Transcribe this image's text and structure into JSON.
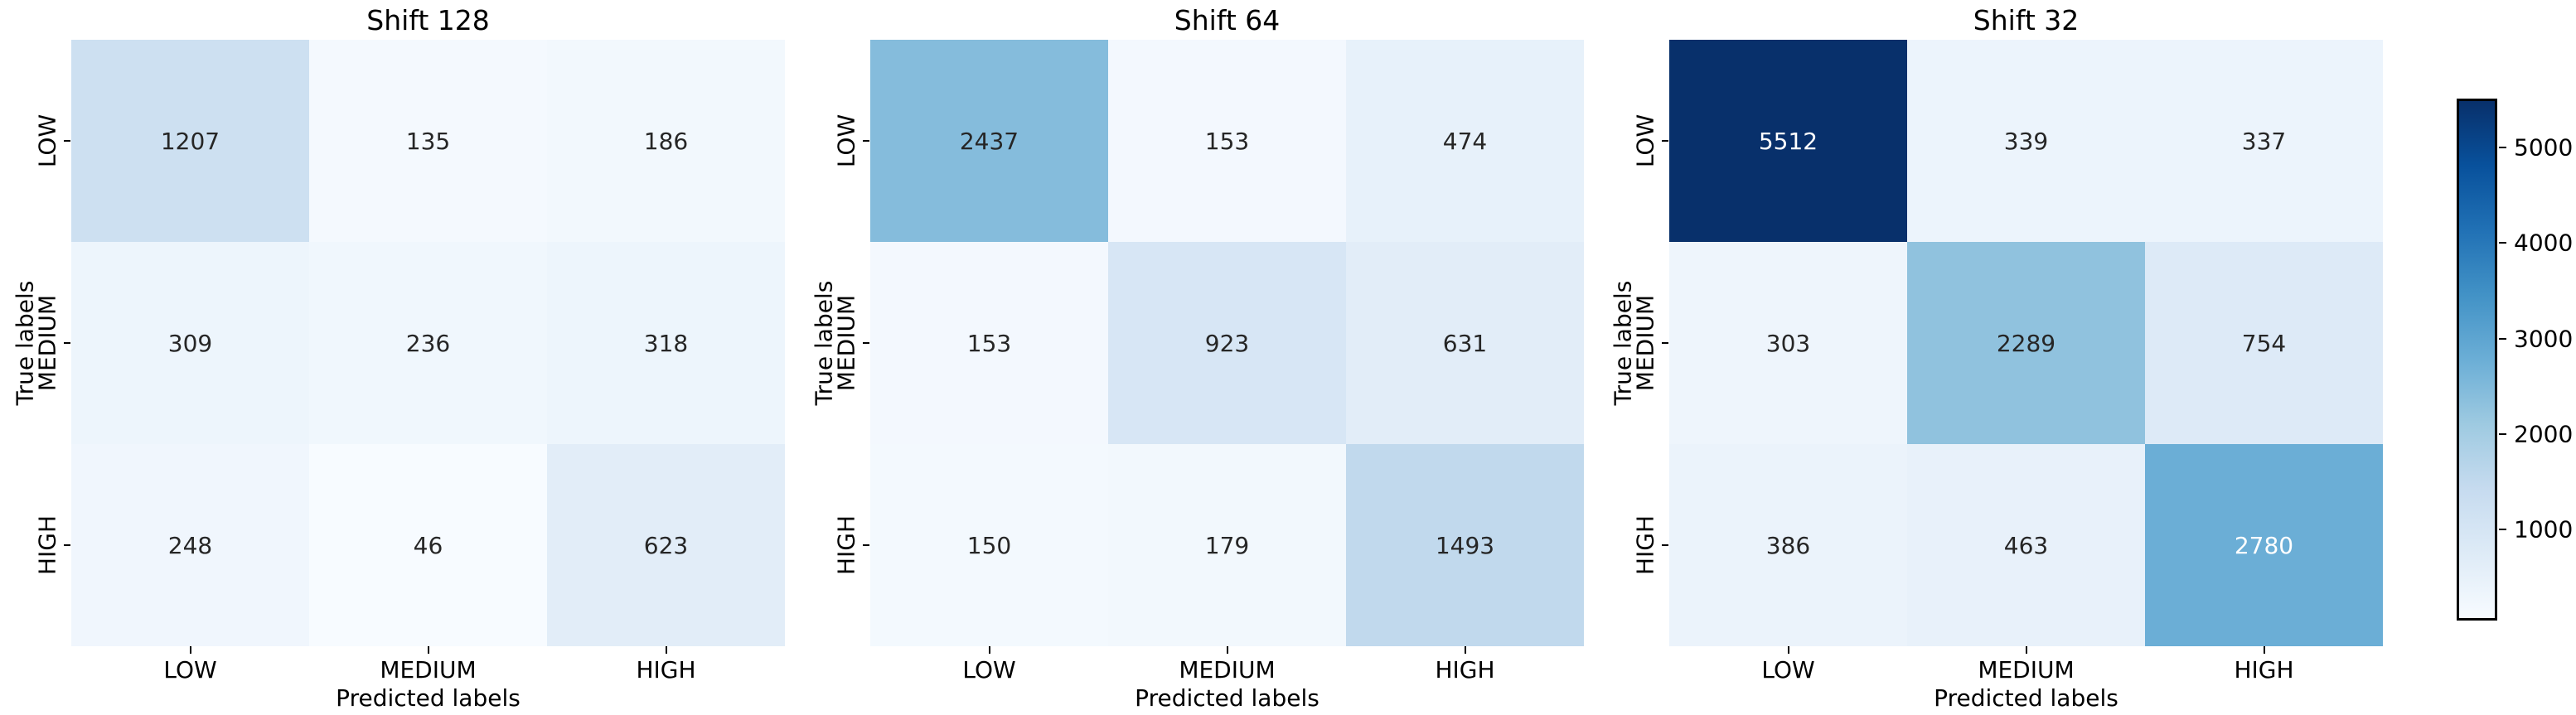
{
  "figure": {
    "background": "#ffffff"
  },
  "chart_data": [
    {
      "type": "heatmap",
      "title": "Shift 128",
      "xlabel": "Predicted labels",
      "ylabel": "True labels",
      "x_categories": [
        "LOW",
        "MEDIUM",
        "HIGH"
      ],
      "y_categories": [
        "LOW",
        "MEDIUM",
        "HIGH"
      ],
      "rows": [
        [
          1207,
          135,
          186
        ],
        [
          309,
          236,
          318
        ],
        [
          248,
          46,
          623
        ]
      ]
    },
    {
      "type": "heatmap",
      "title": "Shift 64",
      "xlabel": "Predicted labels",
      "ylabel": "True labels",
      "x_categories": [
        "LOW",
        "MEDIUM",
        "HIGH"
      ],
      "y_categories": [
        "LOW",
        "MEDIUM",
        "HIGH"
      ],
      "rows": [
        [
          2437,
          153,
          474
        ],
        [
          153,
          923,
          631
        ],
        [
          150,
          179,
          1493
        ]
      ]
    },
    {
      "type": "heatmap",
      "title": "Shift 32",
      "xlabel": "Predicted labels",
      "ylabel": "True labels",
      "x_categories": [
        "LOW",
        "MEDIUM",
        "HIGH"
      ],
      "y_categories": [
        "LOW",
        "MEDIUM",
        "HIGH"
      ],
      "rows": [
        [
          5512,
          339,
          337
        ],
        [
          303,
          2289,
          754
        ],
        [
          386,
          463,
          2780
        ]
      ]
    }
  ],
  "colorbar": {
    "colormap_name": "Blues",
    "vmin": 46,
    "vmax": 5512,
    "ticks": [
      "1000",
      "2000",
      "3000",
      "4000",
      "5000"
    ],
    "colormap_stops": [
      "#f7fbff",
      "#deebf7",
      "#c6dbef",
      "#9ecae1",
      "#6baed6",
      "#4292c6",
      "#2171b5",
      "#08519c",
      "#08306b"
    ],
    "annotation_text_dark": "#262626",
    "annotation_text_light": "#ffffff"
  }
}
